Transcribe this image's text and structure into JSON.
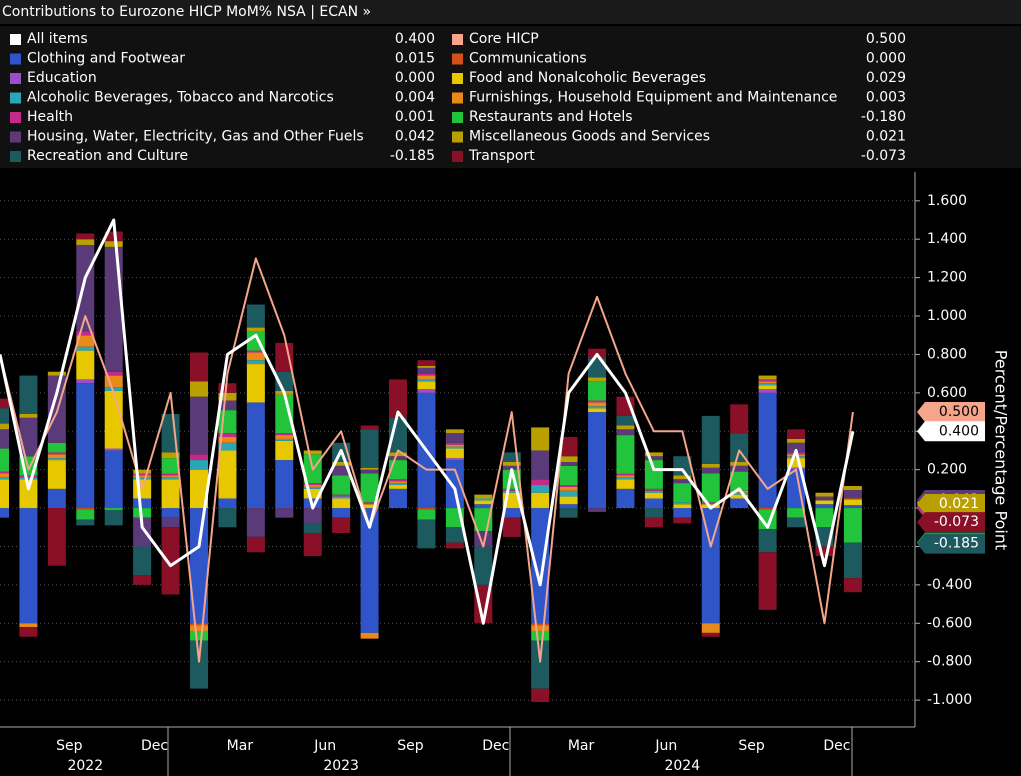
{
  "chart_data": {
    "type": "stacked_bar_line",
    "title": "Contributions to Eurozone HICP MoM% NSA | ECAN »",
    "y_label": "Percent/Percentage Point",
    "categories": [
      null,
      null,
      null,
      "Sep",
      null,
      null,
      "Dec",
      null,
      null,
      "Mar",
      null,
      null,
      "Jun",
      null,
      null,
      "Sep",
      null,
      null,
      "Dec",
      null,
      null,
      "Mar",
      null,
      null,
      "Jun",
      null,
      null,
      "Sep",
      null,
      null,
      "Dec"
    ],
    "year_labels": [
      null,
      null,
      null,
      "2022",
      null,
      null,
      null,
      null,
      null,
      null,
      null,
      null,
      "2023",
      null,
      null,
      null,
      null,
      null,
      null,
      null,
      null,
      null,
      null,
      null,
      "2024",
      null,
      null,
      null,
      null,
      null,
      null
    ],
    "ylim": [
      -1.14,
      1.75
    ],
    "yticks": [
      {
        "value": 1.6,
        "label": "1.600"
      },
      {
        "value": 1.4,
        "label": "1.400"
      },
      {
        "value": 1.2,
        "label": "1.200"
      },
      {
        "value": 1.0,
        "label": "1.000"
      },
      {
        "value": 0.8,
        "label": "0.800"
      },
      {
        "value": 0.6,
        "label": "0.600"
      },
      {
        "value": 0.4,
        "label": "0.400"
      },
      {
        "value": 0.2,
        "label": "0.200"
      },
      {
        "value": 0,
        "label": "0.000"
      },
      {
        "value": -0.2,
        "label": "-0.200"
      },
      {
        "value": -0.4,
        "label": "-0.400"
      },
      {
        "value": -0.6,
        "label": "-0.600"
      },
      {
        "value": -0.8,
        "label": "-0.800"
      },
      {
        "value": -1.0,
        "label": "-1.000"
      }
    ],
    "grid": true,
    "series": [
      {
        "name": "All items",
        "kind": "line",
        "color": "#ffffff",
        "legend_label": "0.400",
        "values": [
          0.8,
          0.1,
          0.6,
          1.2,
          1.5,
          -0.1,
          -0.3,
          -0.2,
          0.8,
          0.9,
          0.6,
          0.0,
          0.3,
          -0.1,
          0.5,
          0.3,
          0.1,
          -0.6,
          0.2,
          -0.4,
          0.6,
          0.8,
          0.6,
          0.2,
          0.2,
          0.0,
          0.1,
          -0.1,
          0.3,
          -0.3,
          0.4
        ]
      },
      {
        "name": "Core HICP",
        "kind": "line",
        "color": "#f4a58a",
        "legend_label": "0.500",
        "values": [
          0.8,
          0.2,
          0.5,
          1.0,
          0.6,
          0.1,
          0.6,
          -0.8,
          0.7,
          1.3,
          0.9,
          0.2,
          0.4,
          -0.1,
          0.3,
          0.2,
          0.2,
          -0.2,
          0.5,
          -0.8,
          0.7,
          1.1,
          0.7,
          0.4,
          0.4,
          -0.2,
          0.3,
          0.1,
          0.2,
          -0.6,
          0.5
        ]
      },
      {
        "name": "Clothing and Footwear",
        "kind": "bar",
        "color": "#2f55c8",
        "legend_label": "0.015",
        "values": [
          -0.05,
          -0.6,
          0.1,
          0.65,
          0.3,
          0.05,
          -0.05,
          -0.6,
          0.05,
          0.55,
          0.25,
          0.05,
          -0.05,
          -0.65,
          0.1,
          0.6,
          0.25,
          0.02,
          -0.05,
          -0.6,
          0.02,
          0.5,
          0.1,
          0.05,
          -0.05,
          -0.6,
          0.05,
          0.6,
          0.2,
          0.02,
          0.015
        ]
      },
      {
        "name": "Communications",
        "kind": "bar",
        "color": "#d4501a",
        "legend_label": "0.000",
        "values": [
          0,
          0,
          0,
          -0.01,
          0,
          0,
          0,
          -0.01,
          0,
          0,
          0,
          0,
          0,
          0,
          0,
          -0.01,
          0,
          0,
          0,
          -0.01,
          0,
          0,
          0,
          0,
          0,
          0,
          0,
          -0.01,
          0,
          0,
          0
        ]
      },
      {
        "name": "Education",
        "kind": "bar",
        "color": "#9a4fc8",
        "legend_label": "0.000",
        "values": [
          0,
          0,
          0,
          0.02,
          0.01,
          0,
          0,
          0,
          0,
          0,
          0,
          0,
          0,
          0,
          0,
          0.02,
          0.01,
          0,
          0,
          0,
          0,
          0,
          0,
          0,
          0,
          0,
          0,
          0.02,
          0.01,
          0,
          0
        ]
      },
      {
        "name": "Food and Nonalcoholic Beverages",
        "kind": "bar",
        "color": "#e6c700",
        "legend_label": "0.029",
        "values": [
          0.15,
          0.15,
          0.15,
          0.15,
          0.3,
          0.1,
          0.15,
          0.2,
          0.25,
          0.2,
          0.1,
          0.05,
          0.05,
          0.02,
          0.02,
          0.04,
          0.05,
          0.02,
          0.08,
          0.08,
          0.04,
          0.02,
          0.05,
          0.03,
          0.02,
          0.02,
          0.02,
          0.02,
          0.05,
          0.02,
          0.029
        ]
      },
      {
        "name": "Alcoholic Beverages, Tobacco and Narcotics",
        "kind": "bar",
        "color": "#2aa6b8",
        "legend_label": "0.004",
        "values": [
          0.01,
          0.01,
          0.01,
          0.02,
          0.02,
          0.01,
          0.01,
          0.05,
          0.04,
          0.02,
          0.01,
          0.01,
          0.01,
          0,
          0.01,
          0.01,
          0.01,
          0.01,
          0.01,
          0.04,
          0.03,
          0.01,
          0.01,
          0.01,
          0.01,
          0,
          0.01,
          0.01,
          0.01,
          0,
          0.004
        ]
      },
      {
        "name": "Furnishings, Household Equipment and Maintenance",
        "kind": "bar",
        "color": "#e88a1a",
        "legend_label": "0.003",
        "values": [
          0.02,
          -0.02,
          0.02,
          0.06,
          0.06,
          0.01,
          0.01,
          -0.03,
          0.03,
          0.04,
          0.02,
          0.01,
          0,
          -0.03,
          0.01,
          0.02,
          0.01,
          0,
          0,
          -0.03,
          0.02,
          0.02,
          0.01,
          0,
          0,
          -0.05,
          0.01,
          0.01,
          0.01,
          0,
          0.003
        ]
      },
      {
        "name": "Health",
        "kind": "bar",
        "color": "#c42a8a",
        "legend_label": "0.001",
        "values": [
          0.01,
          0.01,
          0.01,
          0.02,
          0.02,
          0.01,
          0.01,
          0.03,
          0.02,
          0.01,
          0.01,
          0.01,
          0.01,
          0.01,
          0.01,
          0.01,
          0.01,
          0,
          0.01,
          0.03,
          0.01,
          0.01,
          0.01,
          0.01,
          0,
          0.01,
          0,
          0.01,
          0.01,
          0,
          0.001
        ]
      },
      {
        "name": "Restaurants and Hotels",
        "kind": "bar",
        "color": "#21c43a",
        "legend_label": "-0.180",
        "values": [
          0.12,
          0.1,
          0.05,
          -0.05,
          -0.01,
          -0.05,
          0.08,
          -0.05,
          0.12,
          0.1,
          0.2,
          0.15,
          0.1,
          0.15,
          0.1,
          -0.05,
          -0.1,
          -0.12,
          0.1,
          -0.05,
          0.1,
          0.1,
          0.2,
          0.15,
          0.1,
          0.15,
          0.1,
          -0.1,
          -0.05,
          -0.1,
          -0.18
        ]
      },
      {
        "name": "Housing, Water, Electricity, Gas and Other Fuels",
        "kind": "bar",
        "color": "#5a3a78",
        "legend_label": "0.042",
        "values": [
          0.1,
          0.2,
          0.35,
          0.45,
          0.65,
          -0.15,
          -0.05,
          0.3,
          0.05,
          -0.15,
          -0.05,
          -0.08,
          0.05,
          0.02,
          0.02,
          0.03,
          0.05,
          -0.08,
          0.02,
          0.15,
          0.02,
          -0.02,
          0.03,
          0.02,
          0.02,
          0.03,
          0.03,
          0,
          0.05,
          0.02,
          0.042
        ]
      },
      {
        "name": "Miscellaneous Goods and Services",
        "kind": "bar",
        "color": "#b8a000",
        "legend_label": "0.021",
        "values": [
          0.03,
          0.02,
          0.02,
          0.03,
          0.03,
          0.02,
          0.03,
          0.08,
          0.04,
          0.02,
          0.02,
          0.02,
          0.02,
          0.01,
          0.02,
          0.01,
          0.02,
          0.02,
          0.02,
          0.12,
          0.03,
          0.02,
          0.02,
          0.02,
          0.02,
          0.02,
          0.02,
          0.02,
          0.02,
          0.02,
          0.021
        ]
      },
      {
        "name": "Recreation and Culture",
        "kind": "bar",
        "color": "#1d5a60",
        "legend_label": "-0.185",
        "values": [
          0.08,
          0.2,
          0,
          -0.03,
          -0.08,
          -0.15,
          0.2,
          -0.25,
          -0.1,
          0.12,
          0.1,
          -0.05,
          0.1,
          0.2,
          0.18,
          -0.15,
          -0.08,
          -0.2,
          0.05,
          -0.25,
          -0.05,
          0.1,
          0.05,
          -0.05,
          0.1,
          0.25,
          0.15,
          -0.12,
          -0.05,
          -0.1,
          -0.185
        ]
      },
      {
        "name": "Transport",
        "kind": "bar",
        "color": "#8a1028",
        "legend_label": "-0.073",
        "values": [
          0.05,
          -0.05,
          -0.3,
          0.03,
          0.05,
          -0.05,
          -0.35,
          0.15,
          0.05,
          -0.08,
          0.15,
          -0.12,
          -0.08,
          0.02,
          0.2,
          0.03,
          -0.03,
          -0.2,
          -0.1,
          -0.07,
          0.1,
          0.05,
          0.1,
          -0.05,
          -0.03,
          -0.02,
          0.15,
          -0.3,
          0.05,
          -0.05,
          -0.073
        ]
      }
    ]
  }
}
